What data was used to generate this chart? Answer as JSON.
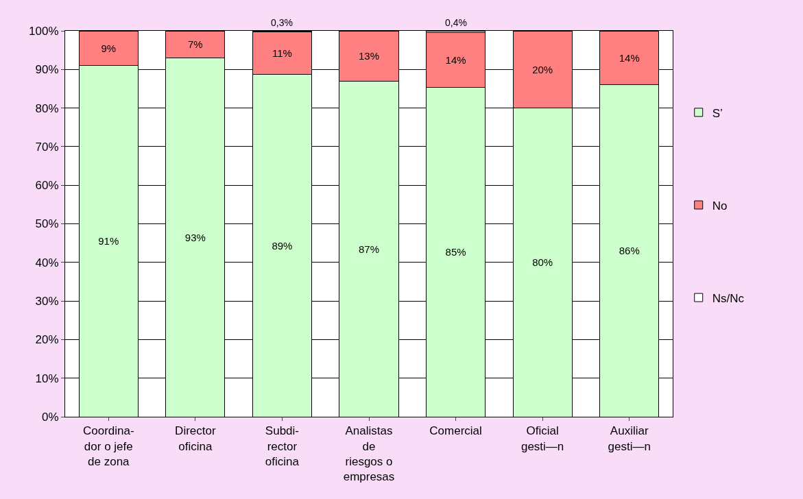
{
  "chart_data": {
    "type": "bar",
    "stacked": true,
    "categories": [
      "Coordina-\ndor o jefe\nde zona",
      "Director\noficina",
      "Subdi-\nrector\noficina",
      "Analistas\nde\nriesgos o\nempresas",
      "Comercial",
      "Oficial\ngesti—n",
      "Auxiliar\ngesti—n"
    ],
    "series": [
      {
        "name": "S’",
        "color": "#ccffcc",
        "values": [
          91,
          93,
          88.7,
          87,
          85.4,
          80,
          86
        ],
        "value_labels": [
          "91%",
          "93%",
          "89%",
          "87%",
          "85%",
          "80%",
          "86%"
        ]
      },
      {
        "name": "No",
        "color": "#ff8080",
        "values": [
          9,
          7,
          11,
          13,
          14.2,
          20,
          14
        ],
        "value_labels": [
          "9%",
          "7%",
          "11%",
          "13%",
          "14%",
          "20%",
          "14%"
        ]
      },
      {
        "name": "Ns/Nc",
        "color": "#ffffff",
        "values": [
          null,
          null,
          0.3,
          null,
          0.4,
          null,
          null
        ],
        "value_labels": [
          null,
          null,
          "0,3%",
          null,
          "0,4%",
          null,
          null
        ]
      }
    ],
    "ylim": [
      0,
      100
    ],
    "yticks": [
      {
        "value": 0,
        "label": "0%"
      },
      {
        "value": 10,
        "label": "10%"
      },
      {
        "value": 20,
        "label": "20%"
      },
      {
        "value": 30,
        "label": "30%"
      },
      {
        "value": 40,
        "label": "40%"
      },
      {
        "value": 50,
        "label": "50%"
      },
      {
        "value": 60,
        "label": "60%"
      },
      {
        "value": 70,
        "label": "70%"
      },
      {
        "value": 80,
        "label": "80%"
      },
      {
        "value": 90,
        "label": "90%"
      },
      {
        "value": 100,
        "label": "100%"
      }
    ],
    "grid": "y",
    "legend": "right"
  }
}
